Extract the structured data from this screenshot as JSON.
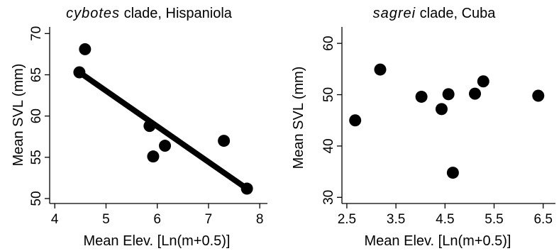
{
  "chart_data": [
    {
      "type": "scatter",
      "title_italic": "cybotes",
      "title_rest": " clade, Hispaniola",
      "xlabel": "Mean Elev. [Ln(m+0.5)]",
      "ylabel": "Mean SVL (mm)",
      "xlim": [
        3.9,
        8.15
      ],
      "ylim": [
        49.4,
        70.8
      ],
      "xticks": [
        4,
        5,
        6,
        7,
        8
      ],
      "yticks": [
        50,
        55,
        60,
        65,
        70
      ],
      "xtick_labels": [
        "4",
        "5",
        "6",
        "7",
        "8"
      ],
      "ytick_labels": [
        "50",
        "55",
        "60",
        "65",
        "70"
      ],
      "points": [
        {
          "x": 4.48,
          "y": 65.3
        },
        {
          "x": 4.59,
          "y": 68.1
        },
        {
          "x": 5.85,
          "y": 58.8
        },
        {
          "x": 5.92,
          "y": 55.1
        },
        {
          "x": 6.15,
          "y": 56.4
        },
        {
          "x": 7.3,
          "y": 57.0
        },
        {
          "x": 7.75,
          "y": 51.2
        }
      ],
      "fit_line": {
        "x": [
          4.48,
          7.75
        ],
        "y": [
          65.3,
          51.2
        ]
      }
    },
    {
      "type": "scatter",
      "title_italic": "sagrei",
      "title_rest": " clade, Cuba",
      "xlabel": "Mean Elev. [Ln(m+0.5)]",
      "ylabel": "Mean SVL (mm)",
      "xlim": [
        2.4,
        6.75
      ],
      "ylim": [
        28.8,
        63.2
      ],
      "xticks": [
        2.5,
        3.5,
        4.5,
        5.5,
        6.5
      ],
      "yticks": [
        30,
        40,
        50,
        60
      ],
      "xtick_labels": [
        "2.5",
        "3.5",
        "4.5",
        "5.5",
        "6.5"
      ],
      "ytick_labels": [
        "30",
        "40",
        "50",
        "60"
      ],
      "points": [
        {
          "x": 2.67,
          "y": 45.0
        },
        {
          "x": 3.18,
          "y": 54.9
        },
        {
          "x": 4.02,
          "y": 49.6
        },
        {
          "x": 4.43,
          "y": 47.2
        },
        {
          "x": 4.57,
          "y": 50.1
        },
        {
          "x": 4.66,
          "y": 34.8
        },
        {
          "x": 5.11,
          "y": 50.2
        },
        {
          "x": 5.28,
          "y": 52.6
        },
        {
          "x": 6.4,
          "y": 49.8
        }
      ]
    }
  ]
}
